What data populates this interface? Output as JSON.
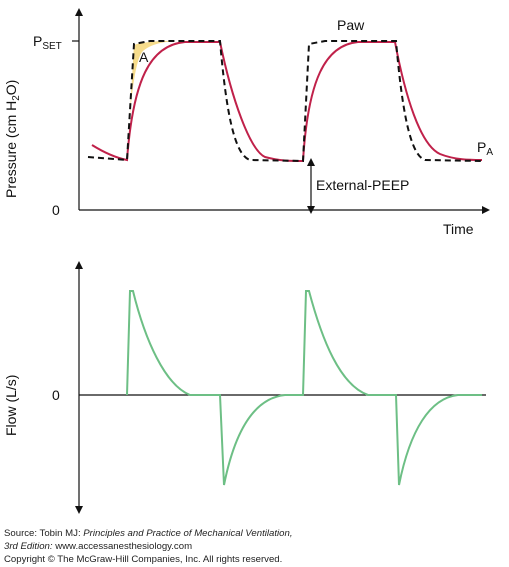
{
  "pressure_panel": {
    "p_set": "P",
    "p_set_sub": "SET",
    "zero": "0",
    "y_label_a": "Pressure (cm H",
    "y_label_sub": "2",
    "y_label_b": "O)",
    "x_label": "Time",
    "paw_label": "Paw",
    "pa_label": "P",
    "pa_sub": "A",
    "area_label": "A",
    "peep_label": "External-PEEP"
  },
  "flow_panel": {
    "zero": "0",
    "y_label": "Flow (L/s)"
  },
  "source": {
    "prefix": "Source: Tobin MJ: ",
    "title": "Principles and Practice of Mechanical Ventilation,",
    "edition": "3rd Edition:",
    "url": " www.accessanesthesiology.com",
    "copyright": "Copyright © The McGraw-Hill Companies, Inc. All rights reserved."
  },
  "colors": {
    "alveolar_pressure": "#c0214a",
    "airway_pressure": "#111111",
    "flow": "#6dbf85",
    "area_fill": "#f6dc8c"
  }
}
